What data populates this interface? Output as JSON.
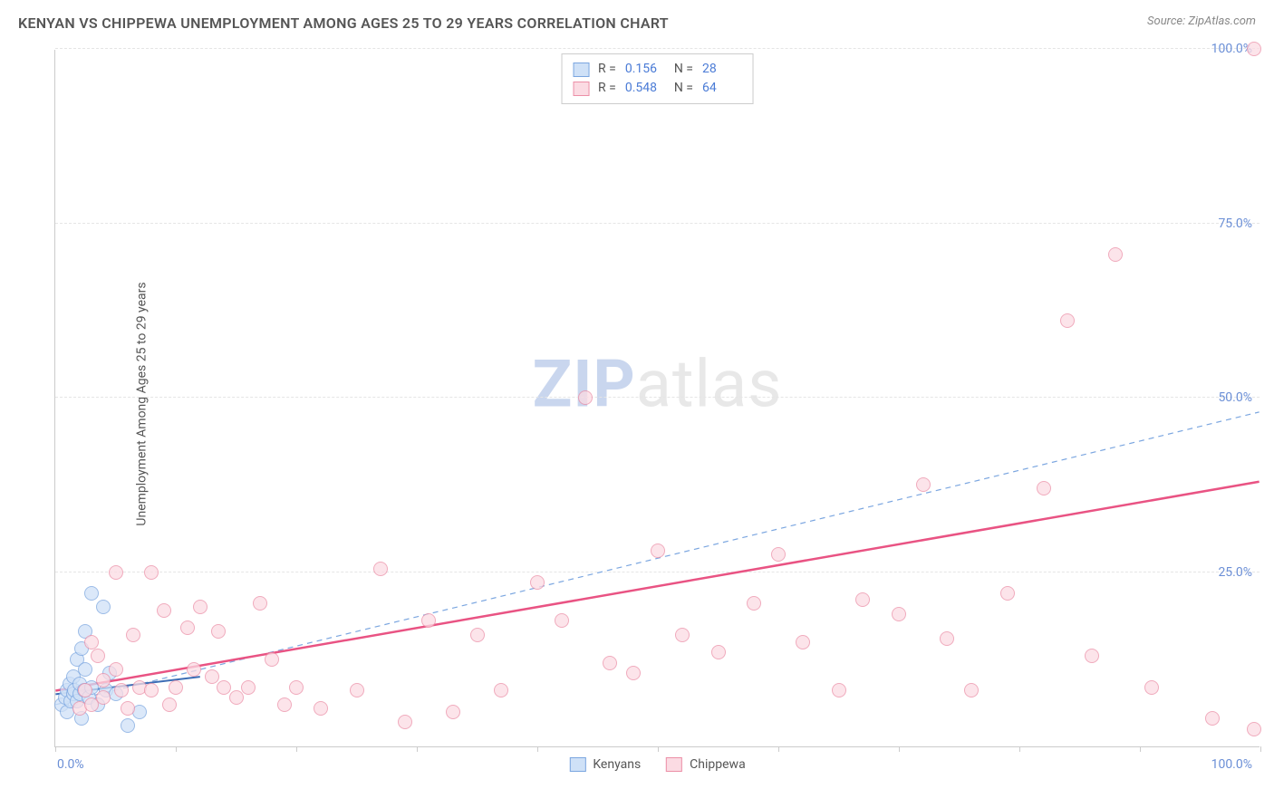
{
  "title": "KENYAN VS CHIPPEWA UNEMPLOYMENT AMONG AGES 25 TO 29 YEARS CORRELATION CHART",
  "source": "Source: ZipAtlas.com",
  "y_axis_title": "Unemployment Among Ages 25 to 29 years",
  "watermark": {
    "zip": "ZIP",
    "atlas": "atlas"
  },
  "chart": {
    "type": "scatter",
    "xlim": [
      0,
      100
    ],
    "ylim": [
      0,
      100
    ],
    "x_ticks": [
      0,
      10,
      20,
      30,
      40,
      50,
      60,
      70,
      80,
      90,
      100
    ],
    "y_ticks": [
      25,
      50,
      75,
      100
    ],
    "y_tick_labels": [
      "25.0%",
      "50.0%",
      "75.0%",
      "100.0%"
    ],
    "x_min_label": "0.0%",
    "x_max_label": "100.0%",
    "background_color": "#ffffff",
    "grid_color": "#e5e5e5",
    "axis_color": "#cccccc",
    "tick_label_color": "#6b8fd6",
    "marker_radius": 8,
    "series": [
      {
        "name": "Kenyans",
        "fill": "#cfe1f7",
        "stroke": "#7ba6e0",
        "opacity": 0.75,
        "R": "0.156",
        "N": "28",
        "trend": {
          "x1": 0,
          "y1": 7.5,
          "x2": 12,
          "y2": 10,
          "stroke": "#3d6db5",
          "width": 2,
          "dash": "none"
        },
        "points": [
          [
            0.5,
            6
          ],
          [
            0.8,
            7
          ],
          [
            1,
            5
          ],
          [
            1,
            8
          ],
          [
            1.2,
            9
          ],
          [
            1.3,
            6.5
          ],
          [
            1.5,
            7.5
          ],
          [
            1.5,
            10
          ],
          [
            1.6,
            8
          ],
          [
            1.8,
            6.5
          ],
          [
            1.8,
            12.5
          ],
          [
            2,
            7.5
          ],
          [
            2,
            9
          ],
          [
            2.2,
            4
          ],
          [
            2.2,
            14
          ],
          [
            2.4,
            8
          ],
          [
            2.5,
            16.5
          ],
          [
            2.5,
            11
          ],
          [
            2.8,
            7
          ],
          [
            3,
            8.5
          ],
          [
            3,
            22
          ],
          [
            3.5,
            6
          ],
          [
            4,
            20
          ],
          [
            4.2,
            8
          ],
          [
            4.5,
            10.5
          ],
          [
            5,
            7.5
          ],
          [
            6,
            3
          ],
          [
            7,
            5
          ]
        ]
      },
      {
        "name": "Chippewa",
        "fill": "#fbdbe3",
        "stroke": "#ec8fa7",
        "opacity": 0.75,
        "R": "0.548",
        "N": "64",
        "trend": {
          "x1": 0,
          "y1": 8,
          "x2": 100,
          "y2": 38,
          "stroke": "#e95383",
          "width": 2.5,
          "dash": "none"
        },
        "points": [
          [
            2,
            5.5
          ],
          [
            2.5,
            8
          ],
          [
            3,
            6
          ],
          [
            3,
            15
          ],
          [
            3.5,
            13
          ],
          [
            4,
            9.5
          ],
          [
            4,
            7
          ],
          [
            5,
            11
          ],
          [
            5,
            25
          ],
          [
            5.5,
            8
          ],
          [
            6,
            5.5
          ],
          [
            6.5,
            16
          ],
          [
            7,
            8.5
          ],
          [
            8,
            25
          ],
          [
            8,
            8
          ],
          [
            9,
            19.5
          ],
          [
            9.5,
            6
          ],
          [
            10,
            8.5
          ],
          [
            11,
            17
          ],
          [
            11.5,
            11
          ],
          [
            12,
            20
          ],
          [
            13,
            10
          ],
          [
            13.5,
            16.5
          ],
          [
            14,
            8.5
          ],
          [
            15,
            7
          ],
          [
            16,
            8.5
          ],
          [
            17,
            20.5
          ],
          [
            18,
            12.5
          ],
          [
            19,
            6
          ],
          [
            20,
            8.5
          ],
          [
            22,
            5.5
          ],
          [
            25,
            8
          ],
          [
            27,
            25.5
          ],
          [
            29,
            3.5
          ],
          [
            31,
            18
          ],
          [
            33,
            5
          ],
          [
            35,
            16
          ],
          [
            37,
            8
          ],
          [
            40,
            23.5
          ],
          [
            42,
            18
          ],
          [
            44,
            50
          ],
          [
            46,
            12
          ],
          [
            48,
            10.5
          ],
          [
            50,
            28
          ],
          [
            52,
            16
          ],
          [
            55,
            13.5
          ],
          [
            58,
            20.5
          ],
          [
            60,
            27.5
          ],
          [
            62,
            15
          ],
          [
            65,
            8
          ],
          [
            67,
            21
          ],
          [
            70,
            19
          ],
          [
            72,
            37.5
          ],
          [
            74,
            15.5
          ],
          [
            76,
            8
          ],
          [
            79,
            22
          ],
          [
            82,
            37
          ],
          [
            84,
            61
          ],
          [
            86,
            13
          ],
          [
            88,
            70.5
          ],
          [
            91,
            8.5
          ],
          [
            96,
            4
          ],
          [
            99.5,
            2.5
          ],
          [
            99.5,
            100
          ]
        ]
      }
    ],
    "reference_line": {
      "x1": 0,
      "y1": 6,
      "x2": 100,
      "y2": 48,
      "stroke": "#7ba6e0",
      "width": 1.2,
      "dash": "6,5"
    }
  },
  "legend_top": {
    "R_label": "R =",
    "N_label": "N ="
  },
  "legend_bottom": [
    {
      "label": "Kenyans",
      "fill": "#cfe1f7",
      "stroke": "#7ba6e0"
    },
    {
      "label": "Chippewa",
      "fill": "#fbdbe3",
      "stroke": "#ec8fa7"
    }
  ]
}
